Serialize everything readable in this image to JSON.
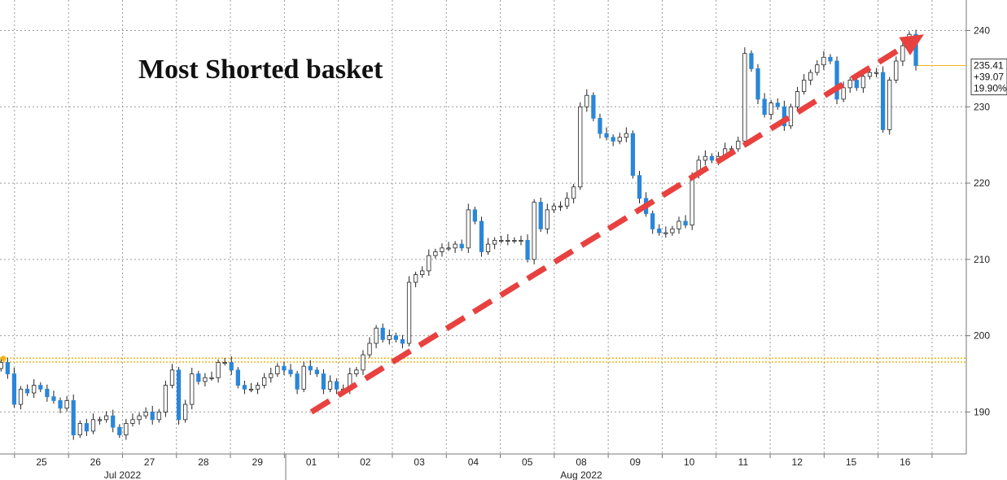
{
  "chart_data": {
    "type": "candlestick",
    "title": "Most Shorted basket",
    "x_labels": [
      "25",
      "26",
      "27",
      "28",
      "29",
      "01",
      "02",
      "03",
      "04",
      "05",
      "08",
      "09",
      "10",
      "11",
      "12",
      "15",
      "16"
    ],
    "months": [
      "Jul 2022",
      "Aug 2022"
    ],
    "yticks": [
      190,
      200,
      210,
      220,
      230,
      240
    ],
    "ylim": [
      184.5,
      244
    ],
    "reference_level": 196.8,
    "last_value": {
      "price": "235.41",
      "change": "+39.07",
      "change_pct": "19.90%"
    },
    "trend_arrow": {
      "from": [
        5,
        190
      ],
      "to": [
        16.35,
        239.5
      ],
      "color": "#e8413f"
    },
    "colors": {
      "up": "#ffffff",
      "down": "#2a86d9",
      "outline": "#222222",
      "reference": "#f2b51b",
      "grid": "#9a9a9a"
    },
    "grid": true,
    "series": [
      {
        "values": [
          196.5,
          195.0,
          191.0,
          193.0,
          192.5,
          193.5,
          193.0,
          192.0,
          191.5,
          190.5,
          191.5,
          187.0,
          188.5,
          187.5,
          189.0,
          189.0,
          189.5,
          188.0,
          187.0,
          188.5,
          189.0,
          189.5,
          190.0,
          189.0,
          190.0,
          193.5,
          195.5,
          189.0,
          191.0,
          195.0,
          194.0,
          194.5,
          194.5,
          196.5,
          196.5,
          195.5,
          193.5,
          193.0,
          193.0,
          193.5,
          194.5,
          195.0,
          196.0,
          195.5,
          195.0,
          193.0,
          196.0,
          195.5,
          195.0,
          193.0,
          194.0,
          193.0,
          193.0,
          195.0,
          195.5,
          197.5,
          199.0,
          201.0,
          199.5,
          200.0,
          199.5,
          199.0,
          207.0,
          208.0,
          208.5,
          210.5,
          211.0,
          211.5,
          211.5,
          212.0,
          211.5,
          216.5,
          215.0,
          211.0,
          212.0,
          212.5,
          212.5,
          212.5,
          212.5,
          212.5,
          210.0,
          217.5,
          214.0,
          216.5,
          217.0,
          217.0,
          218.0,
          219.5,
          230.0,
          231.5,
          228.5,
          226.5,
          226.0,
          225.5,
          226.0,
          226.5,
          221.0,
          218.0,
          216.0,
          214.0,
          213.5,
          213.5,
          214.0,
          215.0,
          214.5,
          221.0,
          223.0,
          223.5,
          223.0,
          223.5,
          224.5,
          224.5,
          225.5,
          237.0,
          235.0,
          231.0,
          229.0,
          230.5,
          230.0,
          227.5,
          230.0,
          232.0,
          233.5,
          234.5,
          235.5,
          236.5,
          236.0,
          231.0,
          232.5,
          233.5,
          232.5,
          234.0,
          234.5,
          234.5,
          227.0,
          233.5,
          236.0,
          238.0,
          239.5,
          235.41
        ]
      }
    ]
  }
}
